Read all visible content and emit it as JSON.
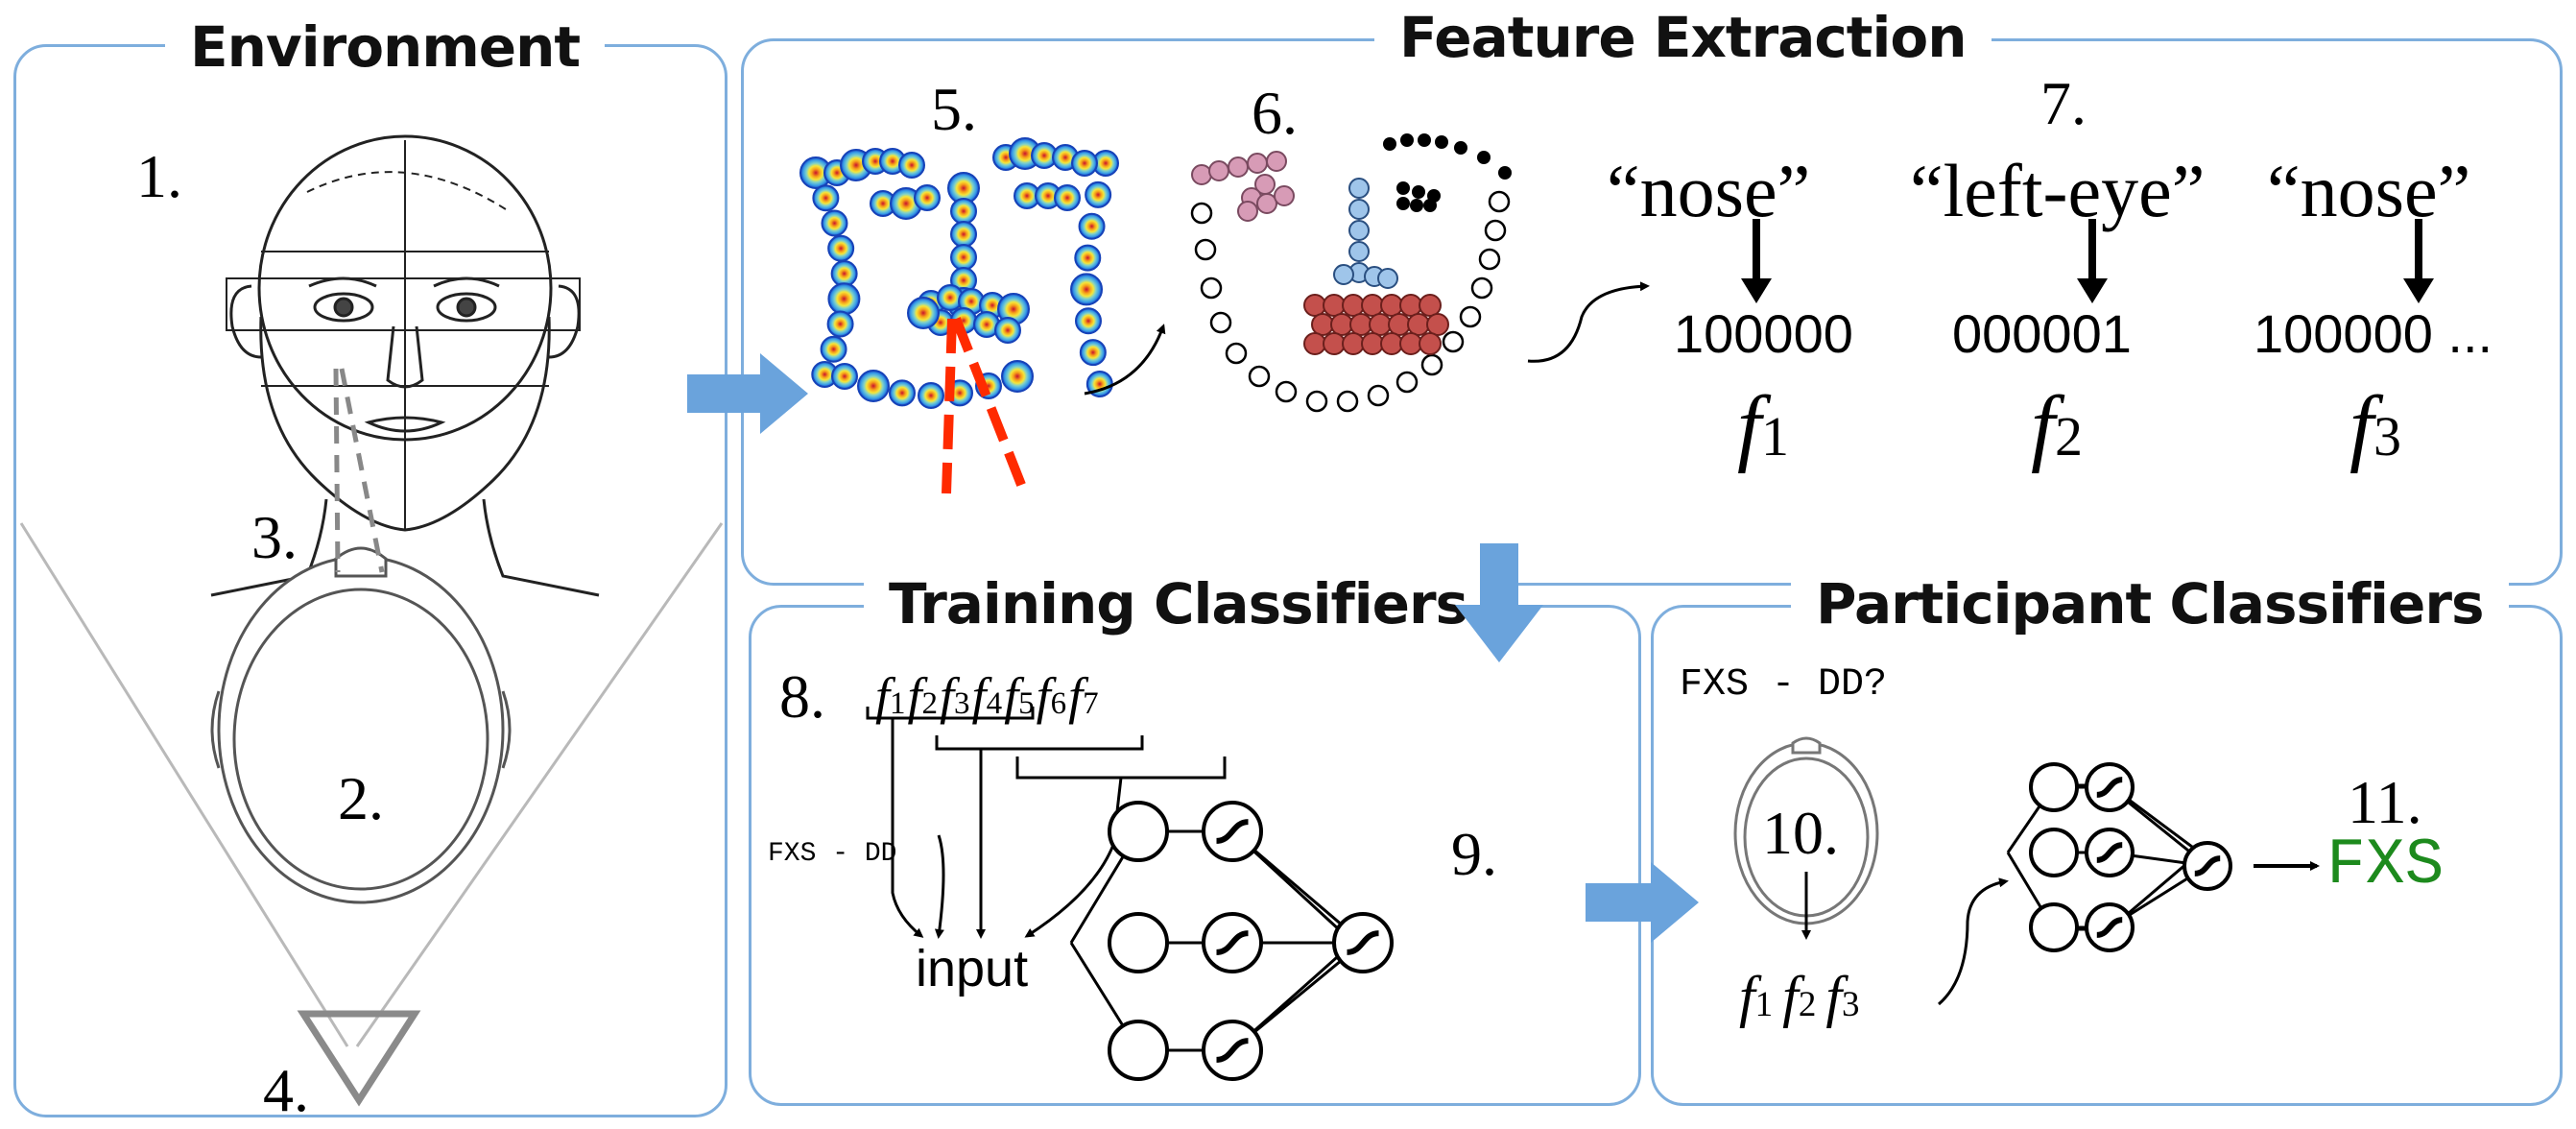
{
  "panels": {
    "environment": "Environment",
    "feature_extraction": "Feature Extraction",
    "training_classifiers": "Training Classifiers",
    "participant_classifiers": "Participant Classifiers"
  },
  "steps": {
    "s1": "1.",
    "s2": "2.",
    "s3": "3.",
    "s4": "4.",
    "s5": "5.",
    "s6": "6.",
    "s7": "7.",
    "s8": "8.",
    "s9": "9.",
    "s10": "10.",
    "s11": "11."
  },
  "gaze_labels": [
    "“nose”",
    "“left-eye”",
    "“nose”"
  ],
  "encodings": [
    "100000",
    "000001",
    "100000 ..."
  ],
  "features": {
    "f1": "f",
    "f1_sub": "1",
    "f2": "f",
    "f2_sub": "2",
    "f3": "f",
    "f3_sub": "3"
  },
  "training": {
    "feature_row": [
      "f1",
      "f2",
      "f3",
      "f4",
      "f5",
      "f6",
      "f7"
    ],
    "label_text": "FXS - DD",
    "input_label": "input"
  },
  "participant": {
    "question": "FXS - DD?",
    "feature_row": [
      "f1",
      "f2",
      "f3"
    ],
    "result": "FXS"
  },
  "colors": {
    "panel_border": "#7eaedd",
    "arrow_fill": "#6aa3dc",
    "gaze_line": "#ff2a00",
    "result_green": "#1d8a1d"
  }
}
